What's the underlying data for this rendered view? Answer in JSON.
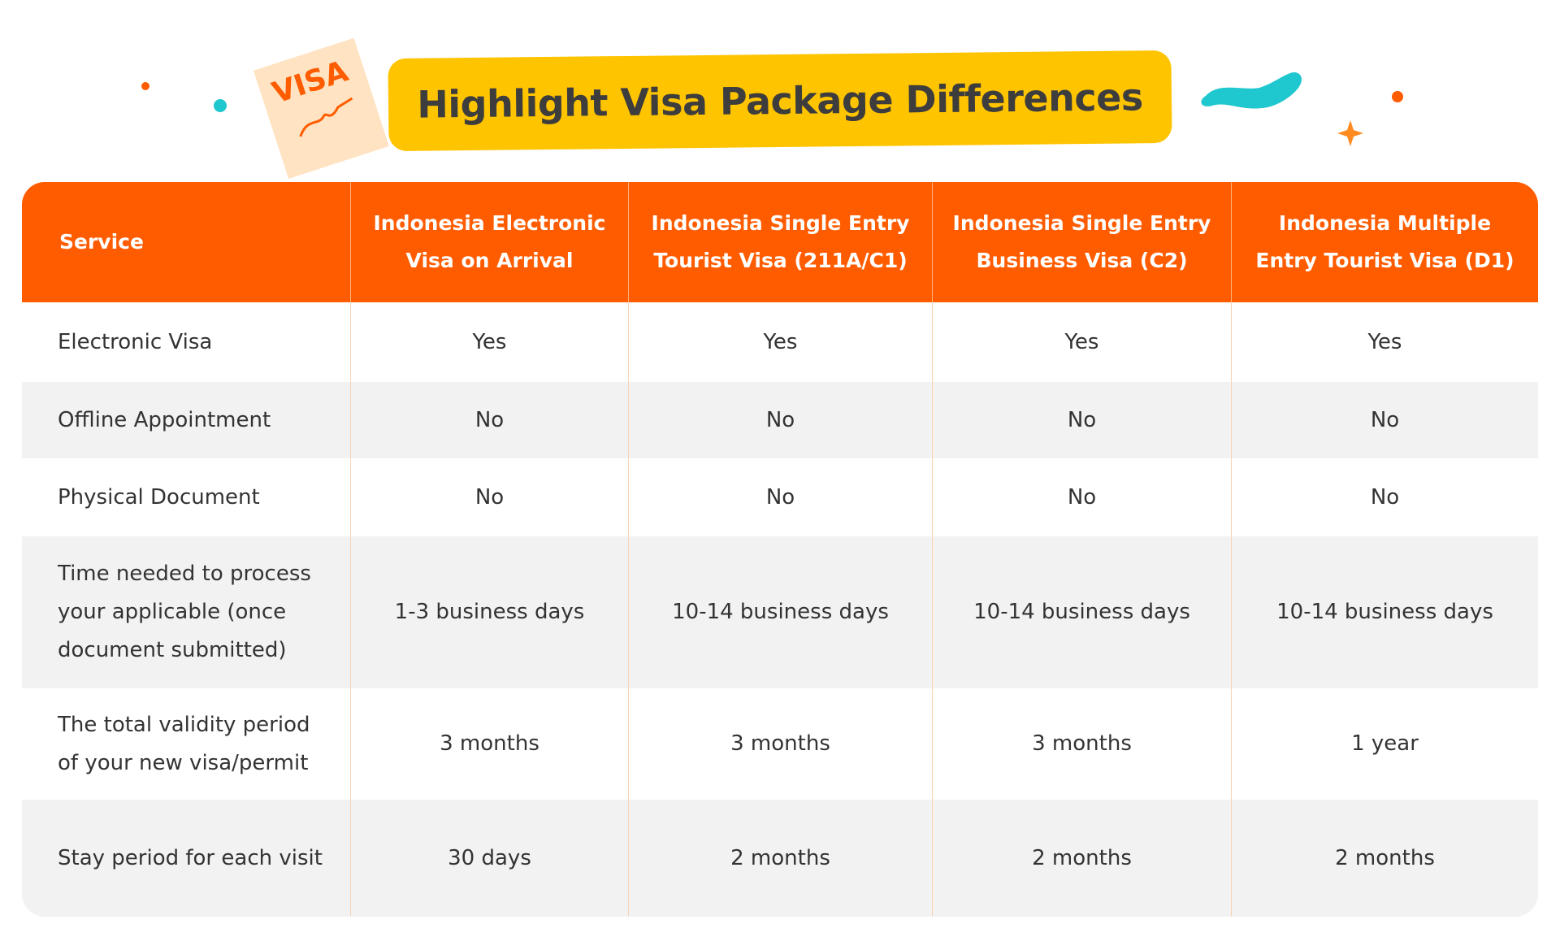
{
  "badge": "VISA",
  "title": "Highlight Visa Package Differences",
  "table": {
    "header": [
      "Service",
      "Indonesia Electronic Visa on Arrival",
      "Indonesia Single Entry Tourist Visa (211A/C1)",
      "Indonesia Single Entry Business Visa (C2)",
      "Indonesia Multiple Entry Tourist Visa (D1)"
    ],
    "rows": [
      [
        "Electronic Visa",
        "Yes",
        "Yes",
        "Yes",
        "Yes"
      ],
      [
        "Offline Appointment",
        "No",
        "No",
        "No",
        "No"
      ],
      [
        "Physical Document",
        "No",
        "No",
        "No",
        "No"
      ],
      [
        "Time needed to process your applicable (once document submitted)",
        "1-3 business days",
        "10-14 business days",
        "10-14 business days",
        "10-14 business days"
      ],
      [
        "The total validity period of your new visa/permit",
        "3 months",
        "3 months",
        "3 months",
        "1 year"
      ],
      [
        "Stay period for each visit",
        "30 days",
        "2 months",
        "2 months",
        "2 months"
      ]
    ]
  }
}
